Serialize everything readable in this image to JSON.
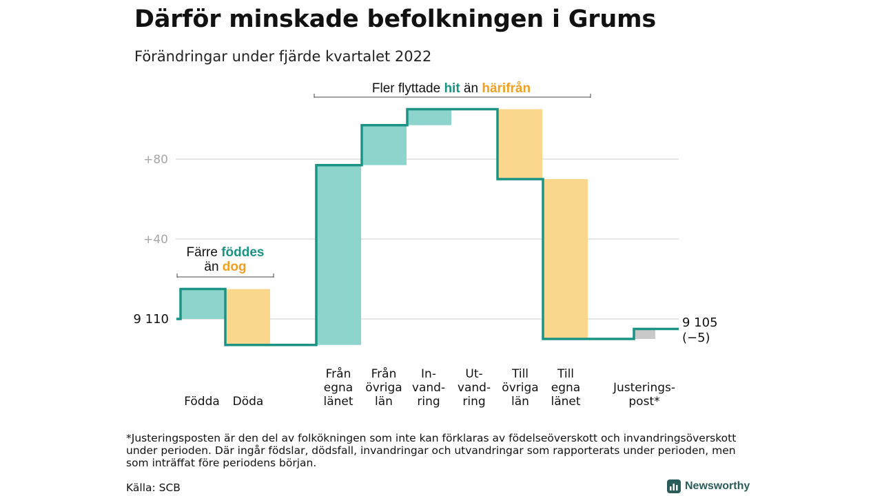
{
  "title": "Därför minskade befolkningen i Grums",
  "subtitle": "Förändringar under fjärde kvartalet 2022",
  "colors": {
    "line": "#1a9384",
    "increase": "#8dd5cc",
    "decrease": "#fad78d",
    "adjustment": "#c9c9c9",
    "grid": "#dddddd",
    "tick_text": "#a6a6a6",
    "accent_teal": "#1a9384",
    "accent_orange": "#f0a020"
  },
  "annotations": {
    "births": {
      "line1_a": "Färre ",
      "line1_b": "föddes",
      "line2_a": "än ",
      "line2_b": "dog"
    },
    "moves": {
      "part_a": "Fler flyttade ",
      "part_b": "hit",
      "part_c": " än ",
      "part_d": "härifrån"
    }
  },
  "start_label": "9 110",
  "end_label_line1": "9 105",
  "end_label_line2": "(−5)",
  "footnote": "*Justeringsposten är den del av folkökningen som inte kan förklaras av födelseöverskott och invandringsöverskott under perioden. Där ingår födslar, dödsfall, invandringar och utvandringar som rapporterats under perioden, men som inträffat före periodens början.",
  "source": "Källa: SCB",
  "brand": "Newsworthy",
  "chart_data": {
    "type": "waterfall",
    "baseline": 9110,
    "end_value": 9105,
    "y_ticks": [
      {
        "value": 0,
        "label": ""
      },
      {
        "value": 40,
        "label": "+40"
      },
      {
        "value": 80,
        "label": "+80"
      }
    ],
    "ylim": [
      -14,
      106
    ],
    "steps": [
      {
        "label_lines": [
          "Födda"
        ],
        "start": 0,
        "end": 15,
        "kind": "increase"
      },
      {
        "label_lines": [
          "Döda"
        ],
        "start": 15,
        "end": -13,
        "kind": "decrease"
      },
      {
        "label_lines": [
          "Från",
          "egna",
          "länet"
        ],
        "start": -13,
        "end": 77,
        "kind": "increase"
      },
      {
        "label_lines": [
          "Från",
          "övriga",
          "län"
        ],
        "start": 77,
        "end": 97,
        "kind": "increase"
      },
      {
        "label_lines": [
          "In-",
          "vand-",
          "ring"
        ],
        "start": 97,
        "end": 105,
        "kind": "increase"
      },
      {
        "label_lines": [
          "Ut-",
          "vand-",
          "ring"
        ],
        "start": 105,
        "end": 105,
        "kind": "none"
      },
      {
        "label_lines": [
          "Till",
          "övriga",
          "län"
        ],
        "start": 105,
        "end": 70,
        "kind": "decrease"
      },
      {
        "label_lines": [
          "Till",
          "egna",
          "länet"
        ],
        "start": 70,
        "end": -10,
        "kind": "decrease"
      },
      {
        "label_lines": [
          "Justerings-",
          "post*"
        ],
        "start": -10,
        "end": -5,
        "kind": "adjustment"
      }
    ]
  }
}
